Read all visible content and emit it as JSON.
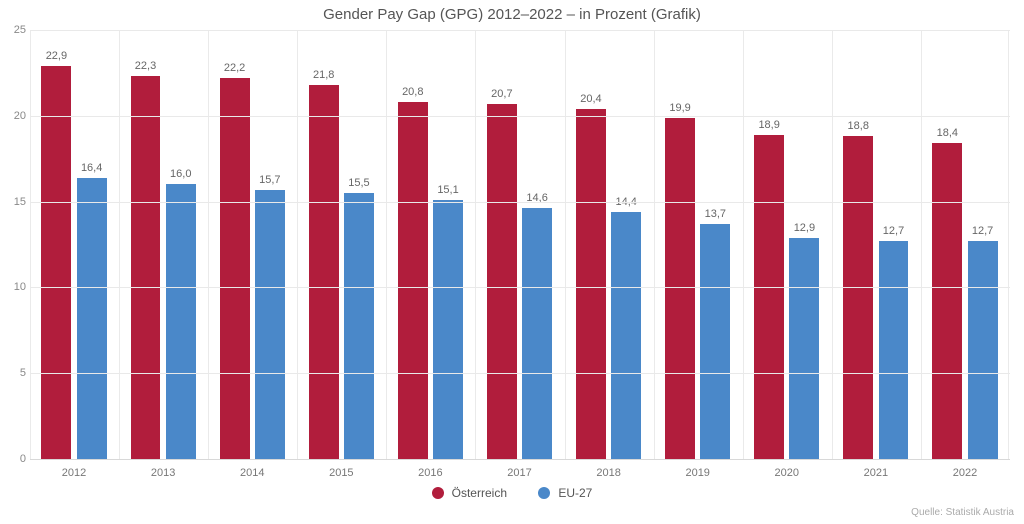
{
  "chart": {
    "type": "bar-grouped",
    "title": "Gender Pay Gap (GPG) 2012–2022 – in Prozent (Grafik)",
    "title_fontsize": 15,
    "title_color": "#555555",
    "background_color": "#ffffff",
    "grid_color": "#e9e9e9",
    "axis_line_color": "#d8d8d8",
    "label_fontsize": 11,
    "label_color": "#777777",
    "value_label_color": "#666666",
    "decimal_separator": ",",
    "ylim": [
      0,
      25
    ],
    "ytick_step": 5,
    "yticks": [
      0,
      5,
      10,
      15,
      20,
      25
    ],
    "categories": [
      "2012",
      "2013",
      "2014",
      "2015",
      "2016",
      "2017",
      "2018",
      "2019",
      "2020",
      "2021",
      "2022"
    ],
    "series": [
      {
        "name": "Österreich",
        "color": "#b11d3c",
        "values": [
          22.9,
          22.3,
          22.2,
          21.8,
          20.8,
          20.7,
          20.4,
          19.9,
          18.9,
          18.8,
          18.4
        ]
      },
      {
        "name": "EU-27",
        "color": "#4a88c9",
        "values": [
          16.4,
          16.0,
          15.7,
          15.5,
          15.1,
          14.6,
          14.4,
          13.7,
          12.9,
          12.7,
          12.7
        ]
      }
    ],
    "group_gap_ratio": 0.26,
    "bar_width_ratio": 0.34,
    "legend": {
      "position": "bottom-center",
      "marker_shape": "circle",
      "fontsize": 12,
      "items": [
        "Österreich",
        "EU-27"
      ]
    },
    "source_text": "Quelle: Statistik Austria",
    "source_color": "#aaaaaa",
    "source_fontsize": 10
  }
}
